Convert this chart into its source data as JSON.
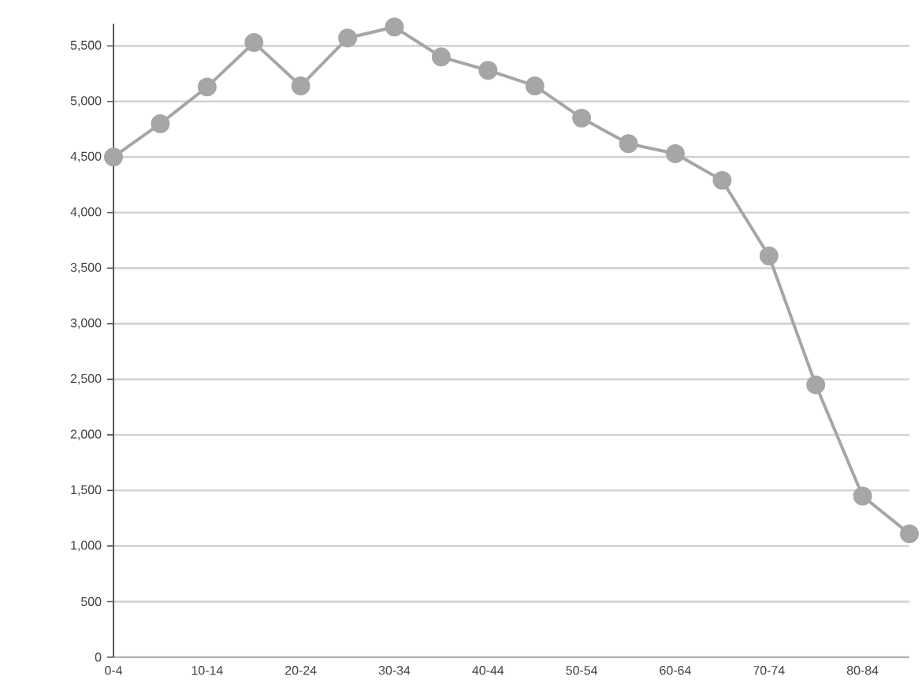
{
  "chart_data": {
    "type": "line",
    "categories": [
      "0-4",
      null,
      "10-14",
      null,
      "20-24",
      null,
      "30-34",
      null,
      "40-44",
      null,
      "50-54",
      null,
      "60-64",
      null,
      "70-74",
      null,
      "80-84",
      null
    ],
    "values": [
      4500,
      4800,
      5130,
      5530,
      5140,
      5570,
      5670,
      5400,
      5280,
      5140,
      4850,
      4620,
      4530,
      4290,
      3610,
      2450,
      1450,
      1110
    ],
    "color": "#a6a6a7",
    "ylim": [
      0,
      5700
    ],
    "yticks": [
      {
        "value": 0,
        "label": "0"
      },
      {
        "value": 500,
        "label": "500"
      },
      {
        "value": 1000,
        "label": "1,000"
      },
      {
        "value": 1500,
        "label": "1,500"
      },
      {
        "value": 2000,
        "label": "2,000"
      },
      {
        "value": 2500,
        "label": "2,500"
      },
      {
        "value": 3000,
        "label": "3,000"
      },
      {
        "value": 3500,
        "label": "3,500"
      },
      {
        "value": 4000,
        "label": "4,000"
      },
      {
        "value": 4500,
        "label": "4,500"
      },
      {
        "value": 5000,
        "label": "5,000"
      },
      {
        "value": 5500,
        "label": "5,500"
      }
    ],
    "grid": "y",
    "marker": "circle"
  }
}
